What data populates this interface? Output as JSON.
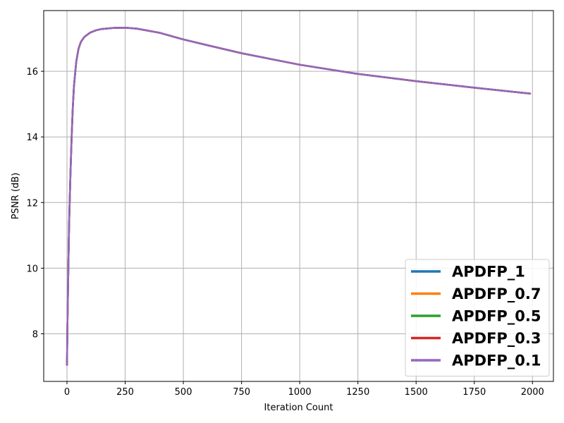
{
  "chart_data": {
    "type": "line",
    "title": "",
    "xlabel": "Iteration Count",
    "ylabel": "PSNR (dB)",
    "xlim": [
      -100,
      2090
    ],
    "ylim": [
      6.55,
      17.85
    ],
    "xticks": [
      0,
      250,
      500,
      750,
      1000,
      1250,
      1500,
      1750,
      2000
    ],
    "yticks": [
      8,
      10,
      12,
      14,
      16
    ],
    "grid": true,
    "legend_position": "lower right",
    "x": [
      0,
      2,
      5,
      8,
      10,
      15,
      20,
      25,
      30,
      40,
      50,
      60,
      75,
      100,
      125,
      150,
      200,
      250,
      300,
      400,
      500,
      600,
      750,
      1000,
      1250,
      1500,
      1750,
      1990
    ],
    "series": [
      {
        "name": "APDFP_1",
        "color": "#1f77b4",
        "values": [
          7.05,
          8.3,
          9.6,
          10.9,
          11.6,
          12.9,
          14.0,
          14.9,
          15.55,
          16.3,
          16.7,
          16.9,
          17.05,
          17.18,
          17.25,
          17.29,
          17.32,
          17.33,
          17.3,
          17.17,
          16.97,
          16.8,
          16.55,
          16.2,
          15.92,
          15.7,
          15.5,
          15.32
        ]
      },
      {
        "name": "APDFP_0.7",
        "color": "#ff7f0e",
        "values": [
          7.05,
          8.3,
          9.6,
          10.9,
          11.6,
          12.9,
          14.0,
          14.9,
          15.55,
          16.3,
          16.7,
          16.9,
          17.05,
          17.18,
          17.25,
          17.29,
          17.32,
          17.33,
          17.3,
          17.17,
          16.97,
          16.8,
          16.55,
          16.2,
          15.92,
          15.7,
          15.5,
          15.32
        ]
      },
      {
        "name": "APDFP_0.5",
        "color": "#2ca02c",
        "values": [
          7.05,
          8.3,
          9.6,
          10.9,
          11.6,
          12.9,
          14.0,
          14.9,
          15.55,
          16.3,
          16.7,
          16.9,
          17.05,
          17.18,
          17.25,
          17.29,
          17.32,
          17.33,
          17.3,
          17.17,
          16.97,
          16.8,
          16.55,
          16.2,
          15.92,
          15.7,
          15.5,
          15.32
        ]
      },
      {
        "name": "APDFP_0.3",
        "color": "#d62728",
        "values": [
          7.05,
          8.3,
          9.6,
          10.9,
          11.6,
          12.9,
          14.0,
          14.9,
          15.55,
          16.3,
          16.7,
          16.9,
          17.05,
          17.18,
          17.25,
          17.29,
          17.32,
          17.33,
          17.3,
          17.17,
          16.97,
          16.8,
          16.55,
          16.2,
          15.92,
          15.7,
          15.5,
          15.32
        ]
      },
      {
        "name": "APDFP_0.1",
        "color": "#9467bd",
        "values": [
          7.05,
          8.3,
          9.6,
          10.9,
          11.6,
          12.9,
          14.0,
          14.9,
          15.55,
          16.3,
          16.7,
          16.9,
          17.05,
          17.18,
          17.25,
          17.29,
          17.32,
          17.33,
          17.3,
          17.17,
          16.97,
          16.8,
          16.55,
          16.2,
          15.92,
          15.7,
          15.5,
          15.32
        ]
      }
    ]
  }
}
